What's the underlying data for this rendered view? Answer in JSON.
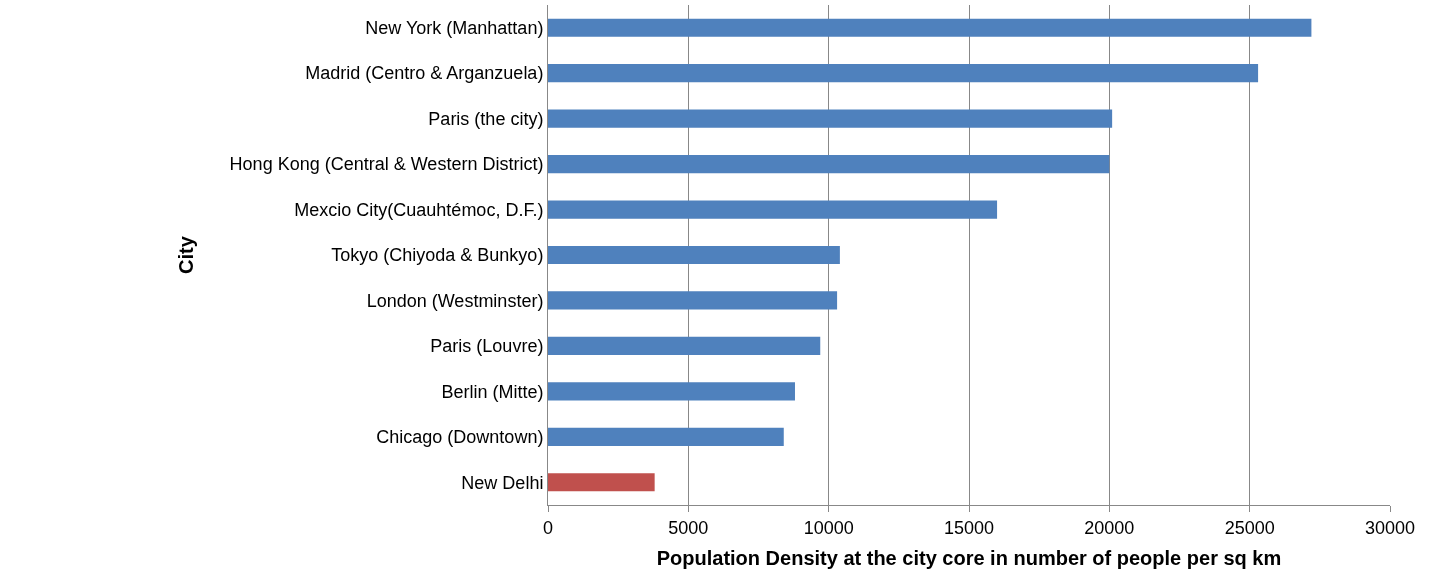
{
  "chart_data": {
    "type": "bar",
    "orientation": "horizontal",
    "xlabel": "Population Density at the city core in number of people per sq km",
    "ylabel": "City",
    "categories": [
      "New York (Manhattan)",
      "Madrid (Centro & Arganzuela)",
      "Paris (the city)",
      "Hong Kong (Central & Western District)",
      "Mexcio City(Cuauhtémoc, D.F.)",
      "Tokyo (Chiyoda & Bunkyo)",
      "London (Westminster)",
      "Paris (Louvre)",
      "Berlin (Mitte)",
      "Chicago (Downtown)",
      "New Delhi"
    ],
    "values": [
      27200,
      25300,
      20100,
      20000,
      16000,
      10400,
      10300,
      9700,
      8800,
      8400,
      3800
    ],
    "colors": [
      "#4f81bd",
      "#4f81bd",
      "#4f81bd",
      "#4f81bd",
      "#4f81bd",
      "#4f81bd",
      "#4f81bd",
      "#4f81bd",
      "#4f81bd",
      "#4f81bd",
      "#c0504d"
    ],
    "xlim": [
      0,
      30000
    ],
    "xticks": [
      0,
      5000,
      10000,
      15000,
      20000,
      25000,
      30000
    ],
    "grid": "x"
  }
}
